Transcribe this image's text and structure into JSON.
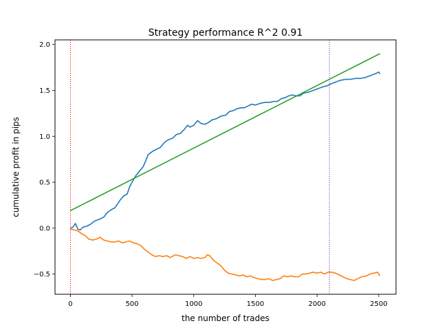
{
  "chart_data": {
    "type": "line",
    "title": "Strategy performance R^2 0.91",
    "xlabel": "the number of trades",
    "ylabel": "cumulative profit in pips",
    "xlim": [
      -125,
      2640
    ],
    "ylim": [
      -0.72,
      2.05
    ],
    "grid": false,
    "legend": "none",
    "x_ticks": [
      0,
      500,
      1000,
      1500,
      2000,
      2500
    ],
    "x_tick_labels": [
      "0",
      "500",
      "1000",
      "1500",
      "2000",
      "2500"
    ],
    "y_ticks": [
      -0.5,
      0.0,
      0.5,
      1.0,
      1.5,
      2.0
    ],
    "y_tick_labels": [
      "−0.5",
      "0.0",
      "0.5",
      "1.0",
      "1.5",
      "2.0"
    ],
    "series": [
      {
        "color": "#1f77b4",
        "points": [
          [
            0,
            0.0
          ],
          [
            20,
            0.01
          ],
          [
            40,
            0.05
          ],
          [
            60,
            -0.01
          ],
          [
            80,
            -0.02
          ],
          [
            100,
            0.01
          ],
          [
            130,
            0.02
          ],
          [
            160,
            0.04
          ],
          [
            200,
            0.08
          ],
          [
            240,
            0.1
          ],
          [
            270,
            0.12
          ],
          [
            300,
            0.17
          ],
          [
            330,
            0.2
          ],
          [
            360,
            0.22
          ],
          [
            400,
            0.3
          ],
          [
            430,
            0.35
          ],
          [
            460,
            0.37
          ],
          [
            480,
            0.45
          ],
          [
            500,
            0.5
          ],
          [
            530,
            0.57
          ],
          [
            560,
            0.62
          ],
          [
            590,
            0.67
          ],
          [
            610,
            0.73
          ],
          [
            630,
            0.8
          ],
          [
            650,
            0.82
          ],
          [
            670,
            0.84
          ],
          [
            700,
            0.86
          ],
          [
            730,
            0.88
          ],
          [
            760,
            0.93
          ],
          [
            790,
            0.96
          ],
          [
            830,
            0.98
          ],
          [
            860,
            1.02
          ],
          [
            890,
            1.03
          ],
          [
            920,
            1.07
          ],
          [
            950,
            1.12
          ],
          [
            970,
            1.1
          ],
          [
            1000,
            1.12
          ],
          [
            1030,
            1.17
          ],
          [
            1060,
            1.14
          ],
          [
            1090,
            1.13
          ],
          [
            1120,
            1.15
          ],
          [
            1150,
            1.18
          ],
          [
            1180,
            1.19
          ],
          [
            1220,
            1.22
          ],
          [
            1260,
            1.23
          ],
          [
            1290,
            1.27
          ],
          [
            1320,
            1.28
          ],
          [
            1350,
            1.3
          ],
          [
            1380,
            1.31
          ],
          [
            1410,
            1.31
          ],
          [
            1440,
            1.33
          ],
          [
            1470,
            1.35
          ],
          [
            1500,
            1.34
          ],
          [
            1540,
            1.36
          ],
          [
            1580,
            1.37
          ],
          [
            1620,
            1.37
          ],
          [
            1650,
            1.38
          ],
          [
            1680,
            1.38
          ],
          [
            1710,
            1.41
          ],
          [
            1740,
            1.42
          ],
          [
            1770,
            1.44
          ],
          [
            1800,
            1.45
          ],
          [
            1830,
            1.44
          ],
          [
            1860,
            1.44
          ],
          [
            1890,
            1.47
          ],
          [
            1930,
            1.48
          ],
          [
            1970,
            1.5
          ],
          [
            2010,
            1.52
          ],
          [
            2050,
            1.54
          ],
          [
            2080,
            1.55
          ],
          [
            2110,
            1.57
          ],
          [
            2150,
            1.59
          ],
          [
            2190,
            1.61
          ],
          [
            2230,
            1.62
          ],
          [
            2270,
            1.62
          ],
          [
            2310,
            1.63
          ],
          [
            2350,
            1.63
          ],
          [
            2390,
            1.64
          ],
          [
            2430,
            1.66
          ],
          [
            2470,
            1.68
          ],
          [
            2500,
            1.7
          ],
          [
            2510,
            1.68
          ]
        ]
      },
      {
        "color": "#ff7f0e",
        "points": [
          [
            0,
            -0.01
          ],
          [
            30,
            -0.02
          ],
          [
            60,
            -0.03
          ],
          [
            90,
            -0.06
          ],
          [
            120,
            -0.08
          ],
          [
            150,
            -0.12
          ],
          [
            180,
            -0.13
          ],
          [
            210,
            -0.12
          ],
          [
            240,
            -0.1
          ],
          [
            270,
            -0.13
          ],
          [
            300,
            -0.14
          ],
          [
            330,
            -0.15
          ],
          [
            360,
            -0.15
          ],
          [
            390,
            -0.14
          ],
          [
            420,
            -0.16
          ],
          [
            450,
            -0.15
          ],
          [
            480,
            -0.14
          ],
          [
            510,
            -0.16
          ],
          [
            540,
            -0.17
          ],
          [
            570,
            -0.19
          ],
          [
            600,
            -0.23
          ],
          [
            630,
            -0.26
          ],
          [
            660,
            -0.29
          ],
          [
            690,
            -0.31
          ],
          [
            720,
            -0.3
          ],
          [
            750,
            -0.31
          ],
          [
            780,
            -0.3
          ],
          [
            810,
            -0.32
          ],
          [
            850,
            -0.29
          ],
          [
            880,
            -0.3
          ],
          [
            910,
            -0.31
          ],
          [
            940,
            -0.33
          ],
          [
            970,
            -0.31
          ],
          [
            1000,
            -0.33
          ],
          [
            1030,
            -0.32
          ],
          [
            1060,
            -0.33
          ],
          [
            1090,
            -0.32
          ],
          [
            1110,
            -0.29
          ],
          [
            1130,
            -0.3
          ],
          [
            1160,
            -0.35
          ],
          [
            1190,
            -0.38
          ],
          [
            1220,
            -0.41
          ],
          [
            1250,
            -0.46
          ],
          [
            1280,
            -0.49
          ],
          [
            1310,
            -0.5
          ],
          [
            1340,
            -0.51
          ],
          [
            1370,
            -0.52
          ],
          [
            1400,
            -0.51
          ],
          [
            1430,
            -0.53
          ],
          [
            1460,
            -0.52
          ],
          [
            1490,
            -0.54
          ],
          [
            1520,
            -0.55
          ],
          [
            1550,
            -0.56
          ],
          [
            1580,
            -0.56
          ],
          [
            1610,
            -0.55
          ],
          [
            1640,
            -0.57
          ],
          [
            1670,
            -0.56
          ],
          [
            1700,
            -0.55
          ],
          [
            1730,
            -0.52
          ],
          [
            1760,
            -0.53
          ],
          [
            1790,
            -0.52
          ],
          [
            1820,
            -0.53
          ],
          [
            1850,
            -0.53
          ],
          [
            1880,
            -0.5
          ],
          [
            1910,
            -0.5
          ],
          [
            1940,
            -0.49
          ],
          [
            1970,
            -0.48
          ],
          [
            2000,
            -0.49
          ],
          [
            2030,
            -0.48
          ],
          [
            2060,
            -0.5
          ],
          [
            2090,
            -0.48
          ],
          [
            2120,
            -0.48
          ],
          [
            2150,
            -0.49
          ],
          [
            2180,
            -0.51
          ],
          [
            2210,
            -0.53
          ],
          [
            2240,
            -0.55
          ],
          [
            2270,
            -0.56
          ],
          [
            2300,
            -0.57
          ],
          [
            2330,
            -0.55
          ],
          [
            2360,
            -0.53
          ],
          [
            2400,
            -0.52
          ],
          [
            2430,
            -0.5
          ],
          [
            2460,
            -0.49
          ],
          [
            2490,
            -0.48
          ],
          [
            2510,
            -0.52
          ]
        ]
      },
      {
        "color": "#2ca02c",
        "points": [
          [
            0,
            0.19
          ],
          [
            2510,
            1.9
          ]
        ]
      }
    ],
    "vlines": [
      {
        "x": 0,
        "color": "#ff0000",
        "style": "dotted"
      },
      {
        "x": 2100,
        "color": "#8b2bbd",
        "style": "dotted"
      }
    ]
  }
}
